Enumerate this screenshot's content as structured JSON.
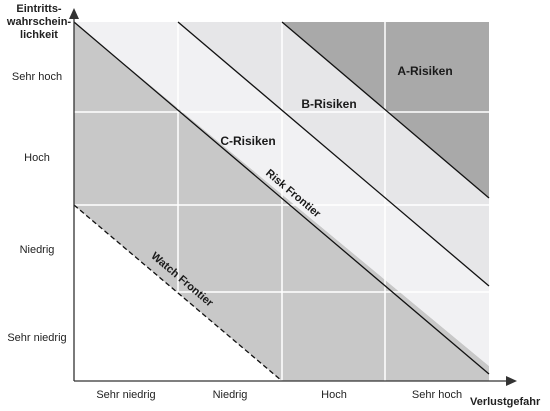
{
  "axis": {
    "y_title": [
      "Eintritts-",
      "wahrschein-",
      "lichkeit"
    ],
    "x_title": "Verlustgefahr",
    "y_levels": [
      "Sehr hoch",
      "Hoch",
      "Niedrig",
      "Sehr niedrig"
    ],
    "x_levels": [
      "Sehr niedrig",
      "Niedrig",
      "Hoch",
      "Sehr hoch"
    ]
  },
  "zones": {
    "a": "A-Risiken",
    "b": "B-Risiken",
    "c": "C-Risiken"
  },
  "frontiers": {
    "risk": "Risk Frontier",
    "watch": "Watch Frontier"
  },
  "colors": {
    "a_zone": "#a9a9a9",
    "b_zone": "#e6e6e8",
    "c_zone": "#c8c8c8",
    "light_band": "#f1f1f3",
    "below_watch": "#ffffff",
    "grid": "#ffffff",
    "axis": "#333333",
    "diagonal": "#111111"
  }
}
